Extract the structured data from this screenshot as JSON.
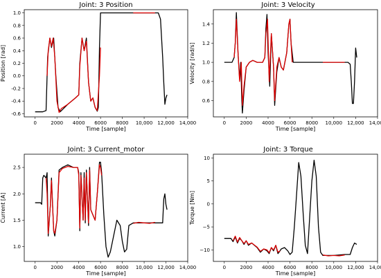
{
  "chart_data": [
    {
      "type": "line",
      "title": "Joint: 3 Position",
      "xlabel": "Time [sample]",
      "ylabel": "Position [rad]",
      "xlim": [
        -1000,
        14000
      ],
      "ylim": [
        -0.65,
        1.05
      ],
      "xticks": [
        0,
        2000,
        4000,
        6000,
        8000,
        10000,
        12000,
        14000
      ],
      "xtick_labels": [
        "0",
        "2000",
        "4000",
        "6000",
        "8000",
        "10,000",
        "12,000",
        "14,000"
      ],
      "yticks": [
        -0.6,
        -0.4,
        -0.2,
        0.0,
        0.2,
        0.4,
        0.6,
        0.8,
        1.0
      ],
      "ytick_labels": [
        "-0.6",
        "-0.4",
        "-0.2",
        "0.0",
        "0.2",
        "0.4",
        "0.6",
        "0.8",
        "1.0"
      ],
      "series": [
        {
          "color": "#000000",
          "x": [
            0,
            700,
            1000,
            1150,
            1350,
            1500,
            1700,
            1900,
            2100,
            2300,
            3000,
            3700,
            4000,
            4100,
            4300,
            4500,
            4700,
            4900,
            5100,
            5300,
            5500,
            5700,
            5800,
            5900,
            6000,
            6300,
            7000,
            8000,
            9000,
            10000,
            11000,
            11300,
            11500,
            11700,
            11800,
            11900,
            12000,
            12100
          ],
          "y": [
            -0.57,
            -0.57,
            -0.55,
            0.3,
            0.6,
            0.45,
            0.6,
            0.0,
            -0.5,
            -0.57,
            -0.45,
            -0.35,
            -0.3,
            0.2,
            0.6,
            0.4,
            0.6,
            -0.1,
            -0.4,
            -0.35,
            -0.5,
            -0.56,
            -0.5,
            0.45,
            1.0,
            1.0,
            1.0,
            1.0,
            1.0,
            1.0,
            1.0,
            1.0,
            0.9,
            0.3,
            -0.1,
            -0.45,
            -0.35,
            -0.3
          ]
        },
        {
          "color": "#dd0000",
          "x": [
            1100,
            1200,
            1350,
            1500,
            1650,
            1800,
            2000,
            2200,
            2400,
            3000,
            3700,
            4000,
            4100,
            4300,
            4500,
            4700,
            4900,
            5100,
            5300,
            5500,
            5700,
            5900,
            6000
          ],
          "y": [
            0.0,
            0.4,
            0.6,
            0.47,
            0.6,
            0.3,
            -0.4,
            -0.58,
            -0.52,
            -0.45,
            -0.35,
            -0.3,
            0.15,
            0.6,
            0.4,
            0.55,
            -0.1,
            -0.4,
            -0.35,
            -0.5,
            -0.55,
            0.0,
            0.45
          ]
        },
        {
          "color": "#dd0000",
          "x": [
            9000,
            9500,
            10000,
            10500,
            11000
          ],
          "y": [
            1.0,
            1.0,
            1.0,
            1.0,
            1.0
          ]
        }
      ]
    },
    {
      "type": "line",
      "title": "Joint: 3 Velocity",
      "xlabel": "Time [sample]",
      "ylabel": "Velocity [rad/s]",
      "xlim": [
        -1000,
        14000
      ],
      "ylim": [
        0.43,
        1.55
      ],
      "xticks": [
        0,
        2000,
        4000,
        6000,
        8000,
        10000,
        12000,
        14000
      ],
      "xtick_labels": [
        "0",
        "2000",
        "4000",
        "6000",
        "8000",
        "10,000",
        "12,000",
        "14,000"
      ],
      "yticks": [
        0.6,
        0.8,
        1.0,
        1.2,
        1.4
      ],
      "ytick_labels": [
        "0.6",
        "0.8",
        "1.0",
        "1.2",
        "1.4"
      ],
      "series": [
        {
          "color": "#000000",
          "x": [
            0,
            700,
            900,
            1000,
            1100,
            1250,
            1400,
            1500,
            1600,
            1650,
            1800,
            2000,
            2300,
            2600,
            3000,
            3500,
            3700,
            3800,
            3900,
            4000,
            4150,
            4300,
            4500,
            4600,
            4800,
            5000,
            5200,
            5400,
            5700,
            5900,
            6000,
            6100,
            6300,
            7000,
            8000,
            9000,
            10000,
            11000,
            11300,
            11500,
            11600,
            11700,
            11800,
            11900,
            12000,
            12100
          ],
          "y": [
            1.0,
            1.0,
            1.05,
            1.2,
            1.52,
            1.1,
            0.82,
            1.0,
            0.6,
            0.47,
            0.7,
            0.95,
            1.0,
            1.02,
            1.0,
            1.0,
            1.05,
            1.35,
            1.5,
            1.1,
            0.75,
            1.3,
            0.95,
            0.55,
            0.9,
            1.05,
            0.95,
            0.92,
            1.1,
            1.4,
            1.45,
            1.2,
            1.0,
            1.0,
            1.0,
            1.0,
            1.0,
            1.0,
            1.0,
            0.98,
            0.8,
            0.57,
            0.57,
            0.8,
            1.15,
            1.05
          ]
        },
        {
          "color": "#dd0000",
          "x": [
            900,
            1000,
            1100,
            1250,
            1400,
            1550,
            1650,
            1800,
            2000,
            2300,
            2600,
            3000,
            3500,
            3700,
            3800,
            3950,
            4100,
            4300,
            4500,
            4600,
            4800,
            5000,
            5200,
            5400,
            5700,
            5900,
            6000,
            6100,
            6200
          ],
          "y": [
            1.05,
            1.2,
            1.45,
            1.1,
            0.8,
            1.0,
            0.55,
            0.75,
            0.95,
            1.0,
            1.02,
            1.0,
            1.0,
            1.05,
            1.3,
            1.45,
            0.8,
            1.3,
            0.95,
            0.6,
            0.95,
            1.05,
            0.95,
            0.92,
            1.1,
            1.4,
            1.45,
            1.2,
            1.0
          ]
        },
        {
          "color": "#dd0000",
          "x": [
            9000,
            9500,
            10000,
            10500,
            11000
          ],
          "y": [
            1.0,
            1.0,
            1.0,
            1.0,
            1.0
          ]
        }
      ]
    },
    {
      "type": "line",
      "title": "Joint: 3 Current_motor",
      "xlabel": "Time [sample]",
      "ylabel": "Current [A]",
      "xlim": [
        -1000,
        14000
      ],
      "ylim": [
        0.72,
        2.75
      ],
      "xticks": [
        0,
        2000,
        4000,
        6000,
        8000,
        10000,
        12000,
        14000
      ],
      "xtick_labels": [
        "0",
        "2000",
        "4000",
        "6000",
        "8000",
        "10,000",
        "12,000",
        "14,000"
      ],
      "yticks": [
        1.0,
        1.5,
        2.0,
        2.5
      ],
      "ytick_labels": [
        "1.0",
        "1.5",
        "2.0",
        "2.5"
      ],
      "series": [
        {
          "color": "#000000",
          "x": [
            0,
            500,
            600,
            700,
            800,
            1000,
            1100,
            1200,
            1400,
            1500,
            1700,
            1800,
            2000,
            2200,
            2500,
            3000,
            3500,
            3900,
            4000,
            4100,
            4200,
            4400,
            4500,
            4600,
            4700,
            4900,
            5000,
            5100,
            5300,
            5500,
            5700,
            5900,
            6000,
            6100,
            6200,
            6300,
            6500,
            6700,
            6900,
            7200,
            7500,
            7800,
            8000,
            8200,
            8400,
            8600,
            9000,
            10000,
            11000,
            11600,
            11700,
            11800,
            11900,
            12000,
            12100
          ],
          "y": [
            1.83,
            1.83,
            1.8,
            2.3,
            2.35,
            2.3,
            2.4,
            1.2,
            1.8,
            2.3,
            1.3,
            1.2,
            1.5,
            2.45,
            2.5,
            2.55,
            2.5,
            2.5,
            2.4,
            1.3,
            2.4,
            1.5,
            2.4,
            1.45,
            2.45,
            1.4,
            2.5,
            1.7,
            1.6,
            1.5,
            2.0,
            2.6,
            2.6,
            2.4,
            2.0,
            1.6,
            1.0,
            0.8,
            0.9,
            1.2,
            1.5,
            1.4,
            1.1,
            0.9,
            0.95,
            1.4,
            1.45,
            1.45,
            1.45,
            1.45,
            1.45,
            1.9,
            2.0,
            1.8,
            1.7
          ]
        },
        {
          "color": "#dd0000",
          "x": [
            1000,
            1100,
            1200,
            1400,
            1500,
            1700,
            1800,
            2000,
            2200,
            2500,
            3000,
            3500,
            3900,
            4000,
            4100,
            4200,
            4400,
            4500,
            4600,
            4700,
            4900,
            5000,
            5100,
            5300,
            5500,
            5700,
            5900,
            6000,
            6100
          ],
          "y": [
            2.3,
            2.0,
            1.25,
            1.8,
            2.25,
            1.3,
            1.25,
            1.5,
            2.4,
            2.48,
            2.52,
            2.5,
            2.5,
            2.35,
            1.35,
            2.35,
            1.5,
            2.3,
            1.5,
            2.4,
            1.45,
            2.45,
            1.7,
            1.6,
            1.5,
            2.0,
            2.55,
            2.5,
            2.35
          ]
        },
        {
          "color": "#dd0000",
          "x": [
            9000,
            9500,
            10000,
            10500,
            11000
          ],
          "y": [
            1.44,
            1.46,
            1.45,
            1.44,
            1.46
          ]
        }
      ]
    },
    {
      "type": "line",
      "title": "Joint: 3 Torque",
      "xlabel": "Time [sample]",
      "ylabel": "Torque [Nm]",
      "xlim": [
        -1000,
        14000
      ],
      "ylim": [
        -12.5,
        10.8
      ],
      "xticks": [
        0,
        2000,
        4000,
        6000,
        8000,
        10000,
        12000,
        14000
      ],
      "xtick_labels": [
        "0",
        "2000",
        "4000",
        "6000",
        "8000",
        "10,000",
        "12,000",
        "14,000"
      ],
      "yticks": [
        -10,
        -5,
        0,
        5,
        10
      ],
      "ytick_labels": [
        "−10",
        "−5",
        "0",
        "5",
        "10"
      ],
      "series": [
        {
          "color": "#000000",
          "x": [
            0,
            600,
            800,
            1000,
            1200,
            1400,
            1600,
            1800,
            2000,
            2200,
            2500,
            3000,
            3300,
            3600,
            3900,
            4100,
            4300,
            4500,
            4700,
            4900,
            5000,
            5200,
            5500,
            5800,
            6000,
            6200,
            6400,
            6600,
            6800,
            7000,
            7200,
            7400,
            7600,
            7800,
            8000,
            8200,
            8400,
            8600,
            8800,
            9000,
            9500,
            10000,
            11000,
            11500,
            11700,
            11900,
            12100
          ],
          "y": [
            -7.5,
            -7.5,
            -8.2,
            -7.2,
            -8.5,
            -7.5,
            -8.0,
            -8.8,
            -8.0,
            -9.0,
            -8.5,
            -9.5,
            -10.5,
            -9.8,
            -10.2,
            -10.8,
            -9.5,
            -10.2,
            -9.0,
            -10.8,
            -10.5,
            -9.8,
            -9.5,
            -10.2,
            -11.0,
            -10.5,
            -5.0,
            2.0,
            9.0,
            6.0,
            -2.0,
            -9.0,
            -10.8,
            -3.0,
            5.0,
            9.5,
            6.0,
            -5.0,
            -10.5,
            -11.2,
            -11.2,
            -11.2,
            -11.0,
            -11.0,
            -9.5,
            -8.5,
            -8.8
          ]
        },
        {
          "color": "#dd0000",
          "x": [
            800,
            1000,
            1200,
            1400,
            1600,
            1800,
            2000,
            2200,
            2500,
            3000,
            3300,
            3600,
            3900,
            4100,
            4300,
            4500,
            4700,
            4900,
            5100
          ],
          "y": [
            -8.0,
            -7.0,
            -8.3,
            -7.3,
            -8.0,
            -8.6,
            -8.0,
            -8.8,
            -8.5,
            -9.4,
            -10.3,
            -9.8,
            -10.0,
            -10.6,
            -9.5,
            -10.0,
            -9.0,
            -10.5,
            -10.2
          ]
        },
        {
          "color": "#dd0000",
          "x": [
            9000,
            9500,
            10000,
            10500,
            11000
          ],
          "y": [
            -11.1,
            -11.3,
            -11.2,
            -11.3,
            -11.1
          ]
        }
      ]
    }
  ]
}
